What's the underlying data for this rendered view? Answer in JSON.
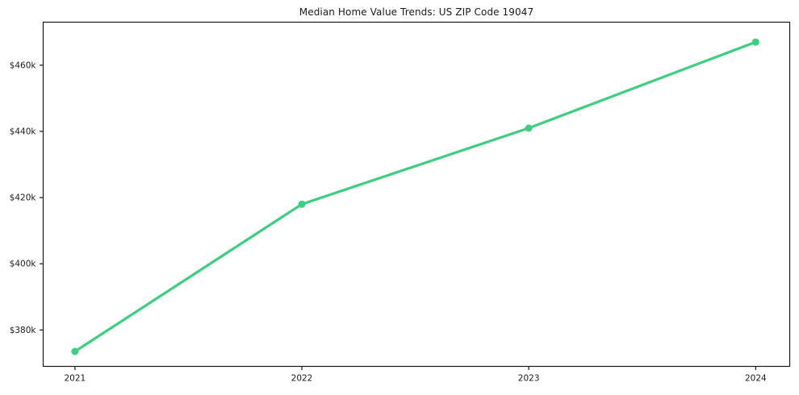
{
  "colors": {
    "line": "#3bcf7f",
    "axis": "#1a1a1a",
    "text": "#1a1a1a",
    "background": "#ffffff"
  },
  "chart_data": {
    "type": "line",
    "title": "Median Home Value Trends: US ZIP Code 19047",
    "x": [
      2021,
      2022,
      2023,
      2024
    ],
    "x_tick_labels": [
      "2021",
      "2022",
      "2023",
      "2024"
    ],
    "values": [
      373500,
      418000,
      441000,
      467000
    ],
    "y_ticks": [
      380000,
      400000,
      420000,
      440000,
      460000
    ],
    "y_tick_labels": [
      "$380k",
      "$400k",
      "$420k",
      "$440k",
      "$460k"
    ],
    "xlim": [
      2020.86,
      2024.15
    ],
    "ylim": [
      369000,
      473000
    ],
    "xlabel": "",
    "ylabel": "",
    "grid": false,
    "legend": "none",
    "marker": "circle"
  }
}
